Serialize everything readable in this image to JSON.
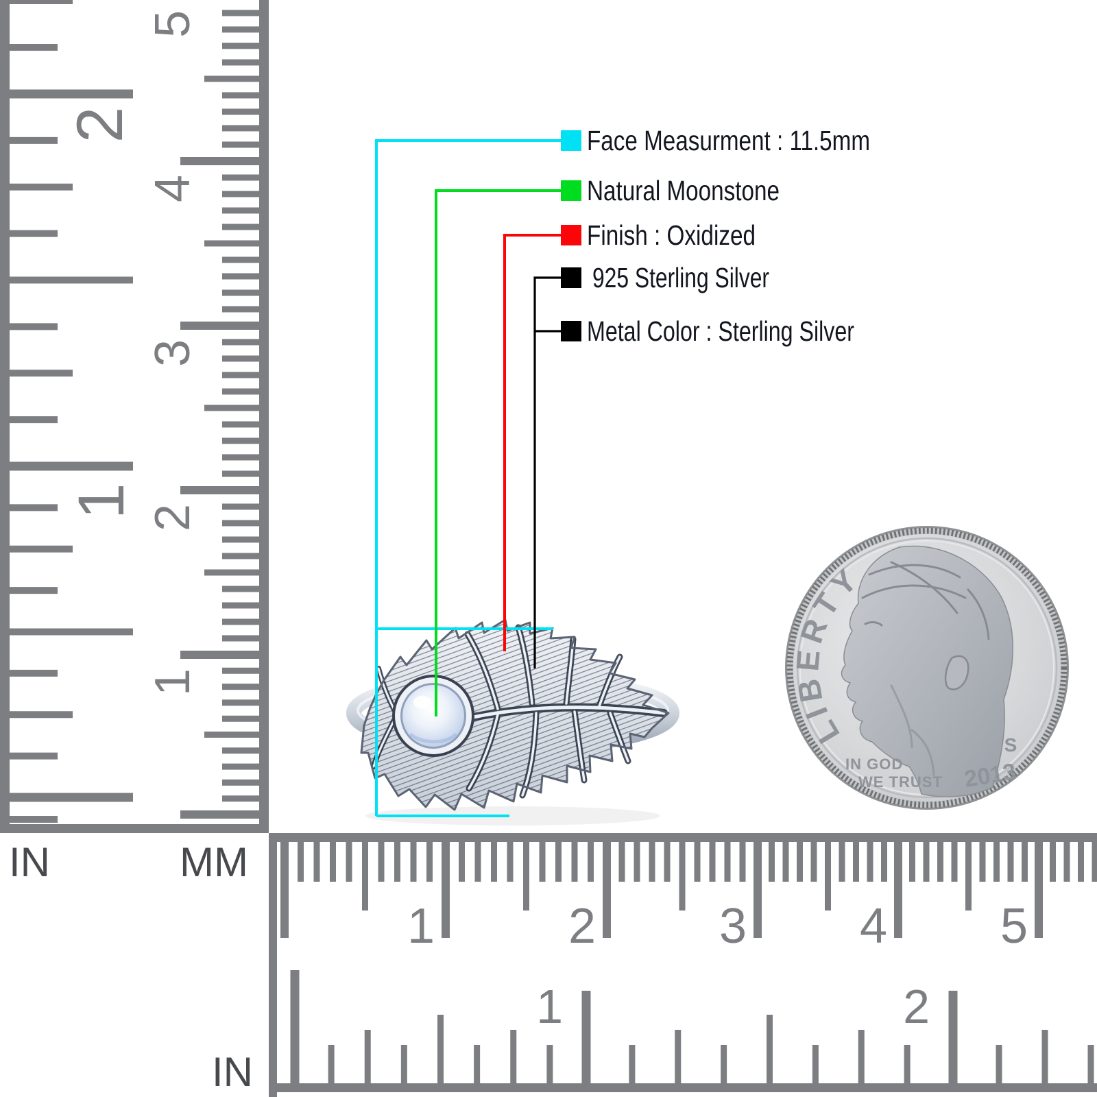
{
  "product_annotations": {
    "text_color": "#13161f",
    "items": [
      {
        "id": "face-measurement",
        "swatch_color": "#00e2f4",
        "label": "Face Measurment : 11.5mm"
      },
      {
        "id": "natural-moonstone",
        "swatch_color": "#00dc1e",
        "label": "Natural Moonstone"
      },
      {
        "id": "finish-oxidized",
        "swatch_color": "#fc0508",
        "label": "Finish : Oxidized"
      },
      {
        "id": "sterling-silver",
        "swatch_color": "#000000",
        "label": "925 Sterling Silver"
      },
      {
        "id": "metal-color",
        "swatch_color": "#000000",
        "label": "Metal Color : Sterling Silver"
      }
    ]
  },
  "measurement": {
    "face_mm": "11.5mm"
  },
  "rulers": {
    "tick_color": "#7c7e81",
    "unit_label_color": "#47494c",
    "vertical": {
      "inch_unit": "IN",
      "mm_unit": "MM",
      "mm_numbers": [
        "5",
        "4",
        "3",
        "2",
        "1"
      ],
      "inch_numbers": [
        "2",
        "1"
      ]
    },
    "horizontal": {
      "inch_unit": "IN",
      "mm_numbers": [
        "1",
        "2",
        "3",
        "4",
        "5"
      ],
      "inch_numbers": [
        "1",
        "2"
      ]
    }
  },
  "coin": {
    "legend": "LIBERTY",
    "motto_line1": "IN GOD",
    "motto_line2": "WE TRUST",
    "mint_mark": "S",
    "year": "2013"
  }
}
